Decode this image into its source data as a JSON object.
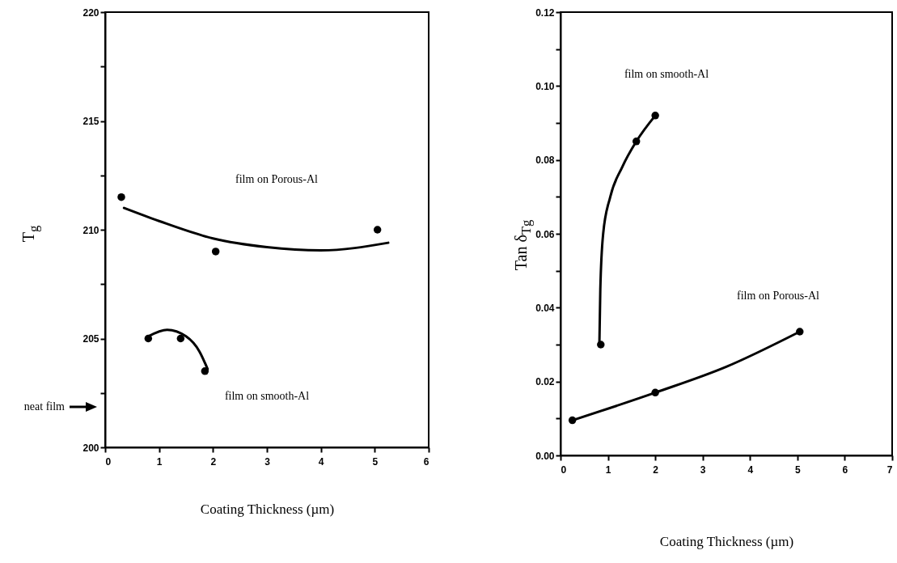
{
  "chart_data": [
    {
      "type": "scatter",
      "xlabel": "Coating Thickness (µm)",
      "ylabel": "T$_{g}$",
      "xlim": [
        0,
        6
      ],
      "ylim": [
        200,
        220
      ],
      "line_style": "solid",
      "grid": false,
      "xticks": [
        0,
        1,
        2,
        3,
        4,
        5,
        6
      ],
      "yticks": [
        200,
        {
          "value": 202.5,
          "label": null
        },
        205,
        {
          "value": 207.5,
          "label": null
        },
        210,
        {
          "value": 212.5,
          "label": null
        },
        215,
        {
          "value": 217.5,
          "label": null
        },
        220
      ],
      "series": [
        {
          "marker": "circle",
          "color": "#000000",
          "x": [
            0.3,
            2.05,
            5.05
          ],
          "values": [
            211.5,
            209,
            210
          ]
        },
        {
          "type": "line",
          "color": "#000000",
          "x": [
            0.35,
            1,
            2,
            3,
            4,
            5.25
          ],
          "values": [
            211,
            210.4,
            209.6,
            209.2,
            209.05,
            209.4
          ]
        },
        {
          "marker": "circle",
          "color": "#000000",
          "x": [
            0.8,
            1.4,
            1.85
          ],
          "values": [
            205,
            205,
            203.5
          ]
        },
        {
          "type": "line",
          "color": "#000000",
          "x": [
            0.8,
            1.15,
            1.5,
            1.75,
            1.9
          ],
          "values": [
            205.1,
            205.4,
            205.1,
            204.4,
            203.6
          ]
        }
      ],
      "annotations": [
        "film on Porous-Al",
        "film on smooth-Al",
        "neat film"
      ]
    },
    {
      "type": "scatter",
      "xlabel": "Coating Thickness (µm)",
      "ylabel": "Tan δ$_{Tg}$",
      "xlim": [
        0,
        7
      ],
      "ylim": [
        0,
        0.12
      ],
      "line_style": "solid",
      "grid": false,
      "xticks": [
        0,
        1,
        2,
        3,
        4,
        5,
        6,
        7
      ],
      "yticks": [
        {
          "value": 0,
          "label": "0.00"
        },
        {
          "value": 0.01,
          "label": null
        },
        {
          "value": 0.02,
          "label": "0.02"
        },
        {
          "value": 0.03,
          "label": null
        },
        {
          "value": 0.04,
          "label": "0.04"
        },
        {
          "value": 0.05,
          "label": null
        },
        {
          "value": 0.06,
          "label": "0.06"
        },
        {
          "value": 0.07,
          "label": null
        },
        {
          "value": 0.08,
          "label": "0.08"
        },
        {
          "value": 0.09,
          "label": null
        },
        {
          "value": 0.1,
          "label": "0.10"
        },
        {
          "value": 0.11,
          "label": null
        },
        {
          "value": 0.12,
          "label": "0.12"
        }
      ],
      "series": [
        {
          "marker": "circle",
          "color": "#000000",
          "x": [
            0.85,
            1.6,
            2.0
          ],
          "values": [
            0.03,
            0.085,
            0.092
          ]
        },
        {
          "type": "line",
          "color": "#000000",
          "x": [
            0.82,
            0.84,
            0.9,
            1.05,
            1.3,
            1.6,
            2.0
          ],
          "values": [
            0.03,
            0.045,
            0.06,
            0.07,
            0.078,
            0.085,
            0.092
          ]
        },
        {
          "marker": "circle",
          "color": "#000000",
          "x": [
            0.25,
            2.0,
            5.05
          ],
          "values": [
            0.0095,
            0.017,
            0.0335
          ]
        },
        {
          "type": "line",
          "color": "#000000",
          "x": [
            0.25,
            2.0,
            3.5,
            5.05
          ],
          "values": [
            0.0095,
            0.017,
            0.024,
            0.0335
          ]
        }
      ],
      "annotations": [
        "film on smooth-Al",
        "film on Porous-Al"
      ]
    }
  ]
}
